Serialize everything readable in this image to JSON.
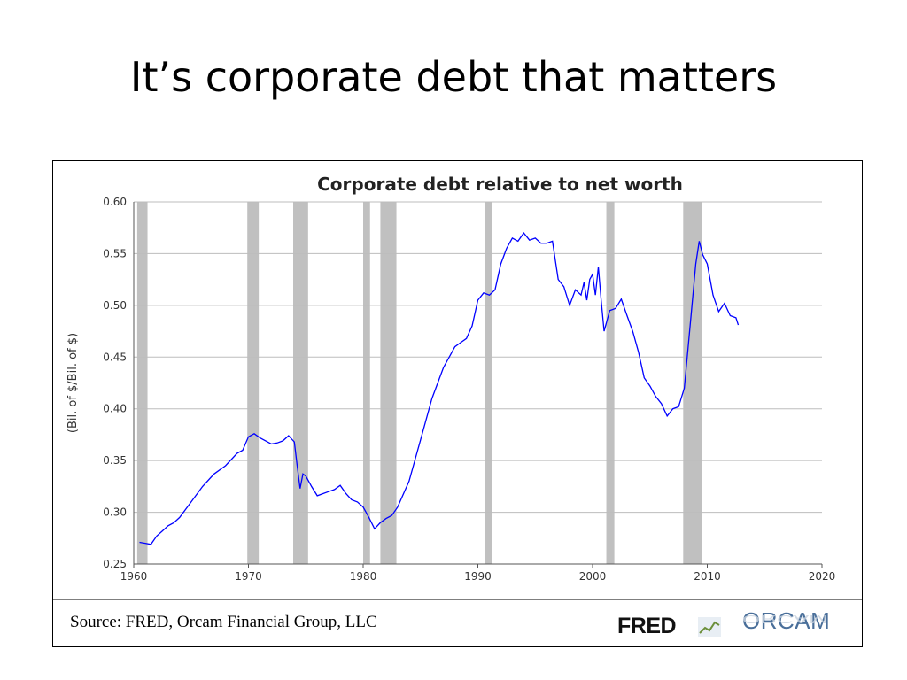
{
  "slide": {
    "title": "It’s corporate debt that matters"
  },
  "footer": {
    "source": "Source: FRED, Orcam Financial Group, LLC",
    "fred_logo_text": "FRED",
    "orcam_logo_text": "ORCAM"
  },
  "chart_data": {
    "type": "line",
    "title": "Corporate debt relative to net worth",
    "xlabel": "",
    "ylabel": "(Bil. of $/Bil. of $)",
    "xlim": [
      1960,
      2020
    ],
    "ylim": [
      0.25,
      0.6
    ],
    "x_ticks": [
      "1960",
      "1970",
      "1980",
      "1990",
      "2000",
      "2010",
      "2020"
    ],
    "y_ticks": [
      "0.25",
      "0.30",
      "0.35",
      "0.40",
      "0.45",
      "0.50",
      "0.55",
      "0.60"
    ],
    "grid": true,
    "line_color": "#0000ff",
    "recession_color": "#c0c0c0",
    "recessions": [
      [
        1960.3,
        1961.2
      ],
      [
        1969.9,
        1970.9
      ],
      [
        1973.9,
        1975.2
      ],
      [
        1980.0,
        1980.6
      ],
      [
        1981.5,
        1982.9
      ],
      [
        1990.6,
        1991.2
      ],
      [
        2001.2,
        2001.9
      ],
      [
        2007.9,
        2009.5
      ]
    ],
    "x": [
      1960.5,
      1961.0,
      1961.5,
      1962.0,
      1962.5,
      1963.0,
      1963.5,
      1964.0,
      1965.0,
      1966.0,
      1967.0,
      1968.0,
      1969.0,
      1969.5,
      1970.0,
      1970.5,
      1971.0,
      1971.5,
      1972.0,
      1972.5,
      1973.0,
      1973.5,
      1974.0,
      1974.25,
      1974.5,
      1974.75,
      1975.0,
      1975.5,
      1976.0,
      1976.5,
      1977.0,
      1977.5,
      1978.0,
      1978.5,
      1979.0,
      1979.5,
      1980.0,
      1980.5,
      1981.0,
      1981.5,
      1982.0,
      1982.5,
      1983.0,
      1984.0,
      1985.0,
      1986.0,
      1987.0,
      1988.0,
      1988.5,
      1989.0,
      1989.5,
      1990.0,
      1990.5,
      1991.0,
      1991.5,
      1992.0,
      1992.5,
      1993.0,
      1993.5,
      1994.0,
      1994.5,
      1995.0,
      1995.5,
      1996.0,
      1996.5,
      1997.0,
      1997.5,
      1998.0,
      1998.5,
      1999.0,
      1999.25,
      1999.5,
      1999.75,
      2000.0,
      2000.25,
      2000.5,
      2000.75,
      2001.0,
      2001.5,
      2002.0,
      2002.5,
      2003.0,
      2003.5,
      2004.0,
      2004.5,
      2005.0,
      2005.5,
      2006.0,
      2006.5,
      2007.0,
      2007.5,
      2008.0,
      2008.5,
      2009.0,
      2009.3,
      2009.6,
      2010.0,
      2010.5,
      2011.0,
      2011.5,
      2012.0,
      2012.5,
      2012.7
    ],
    "values": [
      0.271,
      0.27,
      0.269,
      0.277,
      0.282,
      0.287,
      0.29,
      0.295,
      0.31,
      0.325,
      0.337,
      0.345,
      0.357,
      0.36,
      0.373,
      0.376,
      0.372,
      0.369,
      0.366,
      0.367,
      0.369,
      0.374,
      0.368,
      0.345,
      0.323,
      0.337,
      0.335,
      0.325,
      0.316,
      0.318,
      0.32,
      0.322,
      0.326,
      0.318,
      0.312,
      0.31,
      0.305,
      0.295,
      0.284,
      0.29,
      0.294,
      0.297,
      0.305,
      0.33,
      0.37,
      0.41,
      0.44,
      0.46,
      0.464,
      0.468,
      0.48,
      0.505,
      0.512,
      0.51,
      0.515,
      0.54,
      0.555,
      0.565,
      0.562,
      0.57,
      0.563,
      0.565,
      0.56,
      0.56,
      0.562,
      0.525,
      0.518,
      0.5,
      0.515,
      0.51,
      0.522,
      0.505,
      0.525,
      0.53,
      0.51,
      0.537,
      0.505,
      0.475,
      0.495,
      0.497,
      0.506,
      0.49,
      0.475,
      0.455,
      0.43,
      0.422,
      0.412,
      0.405,
      0.393,
      0.4,
      0.402,
      0.42,
      0.48,
      0.54,
      0.562,
      0.549,
      0.54,
      0.51,
      0.494,
      0.502,
      0.49,
      0.488,
      0.481
    ]
  }
}
